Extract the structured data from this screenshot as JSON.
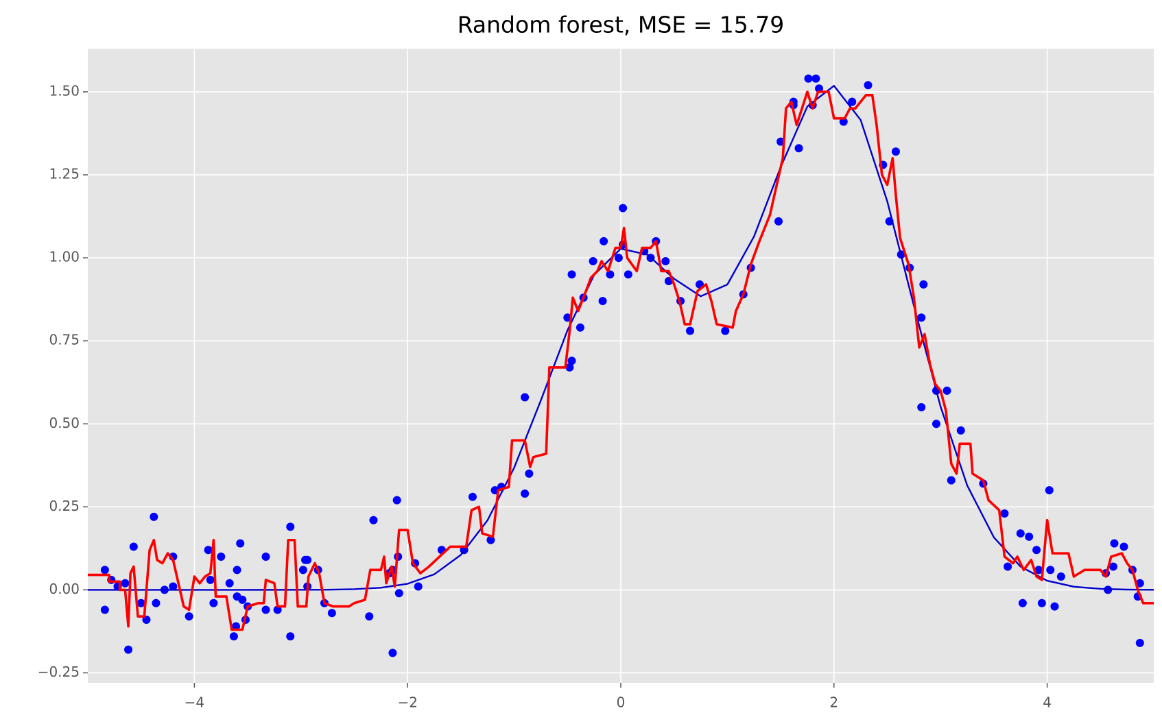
{
  "chart_data": {
    "type": "line",
    "title": "Random forest, MSE = 15.79",
    "xlim": [
      -5,
      5
    ],
    "ylim": [
      -0.28,
      1.63
    ],
    "grid": true,
    "xticks": [
      {
        "value": -4,
        "label": "−4"
      },
      {
        "value": -2,
        "label": "−2"
      },
      0,
      2,
      4
    ],
    "yticks": [
      {
        "value": -0.25,
        "label": "−0.25"
      },
      {
        "value": 0,
        "label": "0.00"
      },
      {
        "value": 0.25,
        "label": "0.25"
      },
      {
        "value": 0.5,
        "label": "0.50"
      },
      {
        "value": 0.75,
        "label": "0.75"
      },
      {
        "value": 1,
        "label": "1.00"
      },
      {
        "value": 1.25,
        "label": "1.25"
      },
      {
        "value": 1.5,
        "label": "1.50"
      }
    ],
    "series": [
      {
        "type": "scatter",
        "color": "#0000ff",
        "x": [
          -4.84,
          -4.84,
          -4.78,
          -4.72,
          -4.65,
          -4.62,
          -4.57,
          -4.5,
          -4.45,
          -4.36,
          -4.38,
          -4.28,
          -4.2,
          -4.2,
          -4.05,
          -3.87,
          -3.85,
          -3.82,
          -3.75,
          -3.67,
          -3.6,
          -3.57,
          -3.55,
          -3.6,
          -3.63,
          -3.61,
          -3.52,
          -3.5,
          -3.33,
          -3.33,
          -3.22,
          -3.1,
          -3.1,
          -2.98,
          -2.96,
          -2.94,
          -2.94,
          -2.84,
          -2.78,
          -2.71,
          -2.36,
          -2.32,
          -2.17,
          -2.14,
          -2.14,
          -2.1,
          -2.09,
          -2.08,
          -1.93,
          -1.9,
          -1.68,
          -1.47,
          -1.39,
          -1.22,
          -1.18,
          -1.12,
          -0.9,
          -0.9,
          -0.86,
          -0.48,
          -0.5,
          -0.46,
          -0.46,
          -0.38,
          -0.35,
          -0.26,
          -0.17,
          -0.16,
          -0.1,
          -0.02,
          0.02,
          0.02,
          0.07,
          0.22,
          0.28,
          0.33,
          0.42,
          0.45,
          0.56,
          0.65,
          0.74,
          0.98,
          1.15,
          1.22,
          1.48,
          1.5,
          1.62,
          1.62,
          1.67,
          1.76,
          1.8,
          1.83,
          1.86,
          2.09,
          2.17,
          2.32,
          2.46,
          2.52,
          2.58,
          2.63,
          2.71,
          2.82,
          2.84,
          2.82,
          2.96,
          2.96,
          3.06,
          3.1,
          3.19,
          3.4,
          3.6,
          3.63,
          3.75,
          3.77,
          3.83,
          3.9,
          3.92,
          3.95,
          4.02,
          4.03,
          4.07,
          4.13,
          4.55,
          4.57,
          4.62,
          4.63,
          4.72,
          4.8,
          4.85,
          4.87,
          4.87
        ],
        "values": [
          0.06,
          -0.06,
          0.03,
          0.01,
          0.02,
          -0.18,
          0.13,
          -0.04,
          -0.09,
          -0.04,
          0.22,
          0.0,
          0.1,
          0.01,
          -0.08,
          0.12,
          0.03,
          -0.04,
          0.1,
          0.02,
          0.06,
          0.14,
          -0.03,
          -0.02,
          -0.14,
          -0.11,
          -0.09,
          -0.05,
          -0.06,
          0.1,
          -0.06,
          0.19,
          -0.14,
          0.06,
          0.09,
          0.09,
          0.01,
          0.06,
          -0.04,
          -0.07,
          -0.08,
          0.21,
          0.05,
          0.06,
          -0.19,
          0.27,
          0.1,
          -0.01,
          0.08,
          0.01,
          0.12,
          0.12,
          0.28,
          0.15,
          0.3,
          0.31,
          0.58,
          0.29,
          0.35,
          0.67,
          0.82,
          0.69,
          0.95,
          0.79,
          0.88,
          0.99,
          0.87,
          1.05,
          0.95,
          1.0,
          1.04,
          1.15,
          0.95,
          1.02,
          1.0,
          1.05,
          0.99,
          0.93,
          0.87,
          0.78,
          0.92,
          0.78,
          0.89,
          0.97,
          1.11,
          1.35,
          1.47,
          1.46,
          1.33,
          1.54,
          1.46,
          1.54,
          1.51,
          1.41,
          1.47,
          1.52,
          1.28,
          1.11,
          1.32,
          1.01,
          0.97,
          0.82,
          0.92,
          0.55,
          0.6,
          0.5,
          0.6,
          0.33,
          0.48,
          0.32,
          0.23,
          0.07,
          0.17,
          -0.04,
          0.16,
          0.12,
          0.06,
          -0.04,
          0.3,
          0.06,
          -0.05,
          0.04,
          0.05,
          0.0,
          0.07,
          0.14,
          0.13,
          0.06,
          -0.02,
          0.02,
          -0.16
        ]
      },
      {
        "type": "line",
        "color": "#0000cd",
        "x": [
          -5,
          -4.5,
          -4,
          -3.5,
          -3,
          -2.75,
          -2.5,
          -2.25,
          -2,
          -1.75,
          -1.5,
          -1.25,
          -1,
          -0.75,
          -0.5,
          -0.25,
          0,
          0.25,
          0.5,
          0.75,
          1,
          1.25,
          1.5,
          1.75,
          2,
          2.25,
          2.5,
          2.75,
          3,
          3.25,
          3.5,
          3.75,
          4,
          4.25,
          4.5,
          4.75,
          5
        ],
        "values": [
          0,
          0,
          0,
          0,
          0.0001,
          0.0005,
          0.0019,
          0.0063,
          0.0183,
          0.0468,
          0.1054,
          0.2096,
          0.3681,
          0.5706,
          0.7817,
          0.9489,
          1.0275,
          1.0096,
          0.9369,
          0.8842,
          0.9197,
          1.0643,
          1.2736,
          1.4559,
          1.5183,
          1.4154,
          1.1701,
          0.8552,
          0.5519,
          0.3144,
          0.1581,
          0.0702,
          0.0275,
          0.0095,
          0.0029,
          0.0008,
          0.0002
        ]
      },
      {
        "type": "line",
        "color": "#ff0000",
        "x": [
          -5,
          -4.8,
          -4.8,
          -4.7,
          -4.7,
          -4.65,
          -4.62,
          -4.6,
          -4.57,
          -4.53,
          -4.47,
          -4.42,
          -4.38,
          -4.35,
          -4.3,
          -4.25,
          -4.2,
          -4.15,
          -4.1,
          -4.05,
          -4.0,
          -3.95,
          -3.9,
          -3.85,
          -3.82,
          -3.8,
          -3.7,
          -3.65,
          -3.55,
          -3.5,
          -3.4,
          -3.35,
          -3.33,
          -3.25,
          -3.22,
          -3.15,
          -3.12,
          -3.06,
          -3.03,
          -2.95,
          -2.93,
          -2.87,
          -2.83,
          -2.78,
          -2.7,
          -2.55,
          -2.5,
          -2.4,
          -2.35,
          -2.25,
          -2.22,
          -2.2,
          -2.15,
          -2.12,
          -2.08,
          -2.0,
          -1.95,
          -1.88,
          -1.8,
          -1.7,
          -1.6,
          -1.45,
          -1.4,
          -1.33,
          -1.3,
          -1.2,
          -1.15,
          -1.05,
          -1.02,
          -0.9,
          -0.85,
          -0.82,
          -0.7,
          -0.67,
          -0.52,
          -0.48,
          -0.45,
          -0.4,
          -0.35,
          -0.28,
          -0.22,
          -0.18,
          -0.12,
          -0.08,
          -0.05,
          0.0,
          0.03,
          0.06,
          0.15,
          0.2,
          0.28,
          0.33,
          0.38,
          0.45,
          0.5,
          0.55,
          0.6,
          0.65,
          0.72,
          0.8,
          0.85,
          0.9,
          1.05,
          1.08,
          1.15,
          1.22,
          1.3,
          1.4,
          1.47,
          1.52,
          1.55,
          1.6,
          1.65,
          1.7,
          1.75,
          1.8,
          1.85,
          1.95,
          2.0,
          2.1,
          2.15,
          2.2,
          2.3,
          2.36,
          2.4,
          2.45,
          2.5,
          2.55,
          2.58,
          2.62,
          2.7,
          2.75,
          2.8,
          2.85,
          2.9,
          2.95,
          3.0,
          3.05,
          3.1,
          3.15,
          3.18,
          3.28,
          3.3,
          3.4,
          3.45,
          3.55,
          3.6,
          3.68,
          3.72,
          3.78,
          3.85,
          3.9,
          3.95,
          4.0,
          4.05,
          4.2,
          4.25,
          4.35,
          4.5,
          4.55,
          4.6,
          4.7,
          4.75,
          4.8,
          4.85,
          4.9,
          5.0
        ],
        "values": [
          0.045,
          0.045,
          0.025,
          0.025,
          0.0,
          0.0,
          -0.11,
          0.05,
          0.07,
          -0.08,
          -0.08,
          0.12,
          0.15,
          0.09,
          0.08,
          0.11,
          0.09,
          0.02,
          -0.05,
          -0.06,
          0.04,
          0.02,
          0.04,
          0.05,
          0.15,
          -0.02,
          -0.02,
          -0.12,
          -0.12,
          -0.05,
          -0.04,
          -0.04,
          0.03,
          0.02,
          -0.05,
          -0.05,
          0.15,
          0.15,
          -0.05,
          -0.05,
          0.04,
          0.08,
          0.05,
          -0.04,
          -0.05,
          -0.05,
          -0.04,
          -0.03,
          0.06,
          0.06,
          0.1,
          0.02,
          0.07,
          0.01,
          0.18,
          0.18,
          0.08,
          0.05,
          0.07,
          0.1,
          0.13,
          0.13,
          0.24,
          0.25,
          0.17,
          0.16,
          0.3,
          0.31,
          0.45,
          0.45,
          0.37,
          0.4,
          0.41,
          0.67,
          0.67,
          0.78,
          0.88,
          0.84,
          0.88,
          0.94,
          0.96,
          0.99,
          0.96,
          1.0,
          1.03,
          1.03,
          1.09,
          1.0,
          0.96,
          1.03,
          1.03,
          1.05,
          0.96,
          0.96,
          0.92,
          0.87,
          0.8,
          0.8,
          0.9,
          0.92,
          0.87,
          0.8,
          0.79,
          0.84,
          0.89,
          0.98,
          1.05,
          1.13,
          1.23,
          1.3,
          1.45,
          1.47,
          1.4,
          1.45,
          1.5,
          1.45,
          1.5,
          1.5,
          1.42,
          1.42,
          1.45,
          1.45,
          1.49,
          1.49,
          1.4,
          1.25,
          1.22,
          1.3,
          1.19,
          1.06,
          0.98,
          0.88,
          0.73,
          0.77,
          0.68,
          0.62,
          0.6,
          0.54,
          0.38,
          0.35,
          0.44,
          0.44,
          0.35,
          0.33,
          0.27,
          0.24,
          0.1,
          0.08,
          0.1,
          0.06,
          0.09,
          0.04,
          0.03,
          0.21,
          0.11,
          0.11,
          0.04,
          0.06,
          0.06,
          0.04,
          0.1,
          0.11,
          0.08,
          0.06,
          0.0,
          -0.04,
          -0.04
        ]
      }
    ]
  }
}
